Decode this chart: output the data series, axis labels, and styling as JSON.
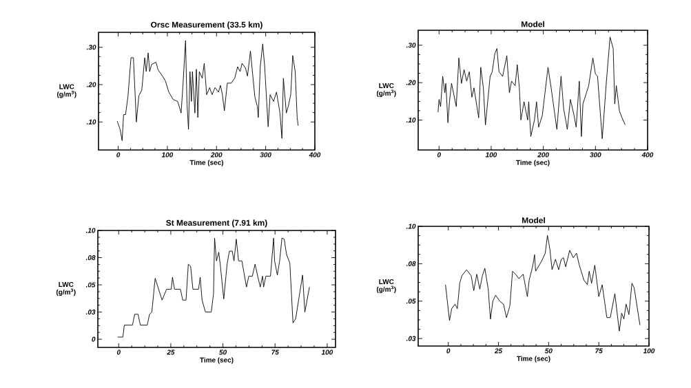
{
  "chart_data": [
    {
      "type": "line",
      "title": "Orsc Measurement (33.5 km)",
      "xlabel": "Time (sec)",
      "ylabel": "LWC (g/m$^{3}$)",
      "color": "#000000",
      "xlim": [
        -40,
        400
      ],
      "ylim": [
        0.025,
        0.34
      ],
      "xticks": [
        0,
        100,
        200,
        300,
        400
      ],
      "yticks": [
        {
          "value": 0.1,
          "label": ".10"
        },
        {
          "value": 0.2,
          "label": ".20"
        },
        {
          "value": 0.3,
          "label": ".30"
        }
      ],
      "x": [
        -2,
        4,
        8,
        11,
        15,
        20,
        26,
        31,
        37,
        42,
        48,
        54,
        57,
        61,
        64,
        68,
        77,
        81,
        90,
        96,
        103,
        112,
        121,
        128,
        132,
        137,
        140,
        143,
        146,
        149,
        151,
        156,
        159,
        162,
        165,
        171,
        175,
        180,
        186,
        191,
        197,
        204,
        208,
        212,
        216,
        222,
        230,
        237,
        243,
        248,
        252,
        259,
        263,
        269,
        272,
        278,
        283,
        285,
        289,
        294,
        298,
        302,
        305,
        309,
        316,
        322,
        329,
        333,
        336,
        342,
        346,
        351,
        355,
        360,
        364,
        366
      ],
      "values": [
        0.102,
        0.08,
        0.05,
        0.12,
        0.12,
        0.17,
        0.272,
        0.272,
        0.1,
        0.17,
        0.185,
        0.272,
        0.235,
        0.285,
        0.235,
        0.254,
        0.26,
        0.24,
        0.223,
        0.21,
        0.18,
        0.16,
        0.155,
        0.124,
        0.204,
        0.318,
        0.148,
        0.08,
        0.235,
        0.155,
        0.235,
        0.124,
        0.241,
        0.112,
        0.235,
        0.217,
        0.257,
        0.173,
        0.192,
        0.173,
        0.192,
        0.18,
        0.198,
        0.173,
        0.13,
        0.204,
        0.204,
        0.217,
        0.248,
        0.235,
        0.257,
        0.244,
        0.223,
        0.29,
        0.248,
        0.167,
        0.142,
        0.112,
        0.248,
        0.309,
        0.248,
        0.155,
        0.087,
        0.173,
        0.155,
        0.18,
        0.124,
        0.056,
        0.217,
        0.124,
        0.142,
        0.173,
        0.278,
        0.235,
        0.112,
        0.09
      ]
    },
    {
      "type": "line",
      "title": "Model",
      "xlabel": "Time (sec)",
      "ylabel": "LWC (g/m$^{3}$)",
      "color": "#000000",
      "xlim": [
        -40,
        400
      ],
      "ylim": [
        0.02,
        0.34
      ],
      "xticks": [
        0,
        100,
        200,
        300,
        400
      ],
      "yticks": [
        {
          "value": 0.1,
          "label": ".10"
        },
        {
          "value": 0.2,
          "label": ".20"
        },
        {
          "value": 0.3,
          "label": ".30"
        }
      ],
      "x": [
        -2,
        0,
        3,
        7,
        11,
        13,
        17,
        20,
        24,
        33,
        38,
        43,
        48,
        53,
        58,
        63,
        67,
        76,
        80,
        85,
        89,
        98,
        102,
        107,
        111,
        115,
        122,
        130,
        135,
        139,
        146,
        150,
        154,
        157,
        163,
        170,
        172,
        176,
        183,
        187,
        191,
        198,
        209,
        215,
        226,
        234,
        239,
        246,
        252,
        259,
        263,
        269,
        273,
        276,
        287,
        295,
        300,
        304,
        313,
        321,
        328,
        334,
        337,
        340,
        346,
        351,
        357
      ],
      "values": [
        0.121,
        0.155,
        0.136,
        0.217,
        0.173,
        0.198,
        0.093,
        0.149,
        0.198,
        0.136,
        0.266,
        0.198,
        0.235,
        0.204,
        0.229,
        0.161,
        0.186,
        0.106,
        0.241,
        0.186,
        0.087,
        0.217,
        0.229,
        0.278,
        0.291,
        0.229,
        0.217,
        0.272,
        0.173,
        0.204,
        0.192,
        0.248,
        0.186,
        0.1,
        0.149,
        0.1,
        0.149,
        0.056,
        0.1,
        0.149,
        0.081,
        0.112,
        0.241,
        0.186,
        0.075,
        0.217,
        0.13,
        0.075,
        0.155,
        0.112,
        0.081,
        0.204,
        0.056,
        0.143,
        0.192,
        0.266,
        0.223,
        0.217,
        0.05,
        0.204,
        0.322,
        0.291,
        0.143,
        0.192,
        0.124,
        0.106,
        0.087
      ]
    },
    {
      "type": "line",
      "title": "St Measurement (7.91 km)",
      "xlabel": "Time (sec)",
      "ylabel": "LWC (g/m$^{3}$)",
      "color": "#000000",
      "xlim": [
        -10,
        104
      ],
      "ylim": [
        -0.0075,
        0.1
      ],
      "xticks": [
        0,
        25,
        50,
        75,
        100
      ],
      "yticks": [
        0,
        {
          "value": 0.025,
          "label": ".03"
        },
        {
          "value": 0.05,
          "label": ".05"
        },
        {
          "value": 0.075,
          "label": ".08"
        },
        {
          "value": 0.1,
          "label": ".10"
        }
      ],
      "x": [
        -0.5,
        2,
        2.7,
        6.6,
        7.7,
        9.3,
        10.4,
        13.7,
        14.8,
        15.9,
        17.5,
        20.8,
        23,
        25.2,
        25.8,
        26.8,
        29.6,
        30.7,
        32.3,
        33.4,
        34.5,
        35.6,
        38.3,
        39.1,
        40,
        41.6,
        44.4,
        45.5,
        46,
        46.9,
        48,
        48.7,
        50.4,
        52,
        53.1,
        54.5,
        55.3,
        56.4,
        57.5,
        59.1,
        61.3,
        62.4,
        64.1,
        65.4,
        66.8,
        67.9,
        69,
        69.5,
        70.6,
        72.8,
        74.3,
        74.8,
        76.1,
        77.2,
        78.3,
        79.4,
        80.5,
        82.1,
        83.6,
        84.9,
        88.2,
        89.3,
        91.5
      ],
      "values": [
        0.002,
        0.002,
        0.013,
        0.013,
        0.023,
        0.023,
        0.013,
        0.013,
        0.023,
        0.025,
        0.056,
        0.036,
        0.046,
        0.046,
        0.057,
        0.046,
        0.046,
        0.036,
        0.036,
        0.069,
        0.067,
        0.046,
        0.046,
        0.057,
        0.036,
        0.025,
        0.025,
        0.042,
        0.093,
        0.072,
        0.08,
        0.069,
        0.037,
        0.069,
        0.081,
        0.081,
        0.072,
        0.092,
        0.072,
        0.072,
        0.048,
        0.058,
        0.058,
        0.069,
        0.057,
        0.048,
        0.058,
        0.048,
        0.058,
        0.058,
        0.093,
        0.072,
        0.059,
        0.072,
        0.093,
        0.092,
        0.078,
        0.07,
        0.015,
        0.019,
        0.059,
        0.025,
        0.048
      ]
    },
    {
      "type": "line",
      "title": "Model",
      "xlabel": "Time (sec)",
      "ylabel": "LWC (g/m$^{3}$)",
      "color": "#000000",
      "xlim": [
        -15,
        100
      ],
      "ylim": [
        0.02,
        0.1
      ],
      "xticks": [
        0,
        25,
        50,
        75,
        100
      ],
      "yticks": [
        {
          "value": 0.025,
          "label": ".03"
        },
        {
          "value": 0.05,
          "label": ".05"
        },
        {
          "value": 0.075,
          "label": ".08"
        },
        {
          "value": 0.1,
          "label": ".10"
        }
      ],
      "x": [
        -1.4,
        0.6,
        1.7,
        3.4,
        4.5,
        5.7,
        6.8,
        9.1,
        11.4,
        12.7,
        14.2,
        15.7,
        17,
        18.2,
        19.9,
        21,
        22.2,
        23.6,
        25.6,
        27.5,
        29,
        30.7,
        32,
        33.5,
        35.2,
        37.3,
        39.4,
        40.3,
        42,
        43,
        43.5,
        46.6,
        48.3,
        49.4,
        50.6,
        51.7,
        53.4,
        55,
        56.3,
        57.4,
        58.5,
        60.5,
        62.3,
        63.9,
        65.3,
        67.6,
        69.3,
        70.2,
        71.4,
        73,
        75,
        76.7,
        79,
        80.7,
        83,
        85.2,
        86.4,
        87.5,
        88.6,
        90,
        91.5,
        92.6,
        95.5
      ],
      "values": [
        0.061,
        0.037,
        0.045,
        0.048,
        0.045,
        0.062,
        0.067,
        0.071,
        0.067,
        0.057,
        0.068,
        0.058,
        0.067,
        0.072,
        0.058,
        0.038,
        0.05,
        0.054,
        0.05,
        0.048,
        0.039,
        0.047,
        0.07,
        0.068,
        0.065,
        0.068,
        0.053,
        0.064,
        0.073,
        0.081,
        0.07,
        0.077,
        0.082,
        0.094,
        0.085,
        0.071,
        0.078,
        0.071,
        0.078,
        0.079,
        0.073,
        0.084,
        0.079,
        0.082,
        0.074,
        0.064,
        0.061,
        0.07,
        0.062,
        0.074,
        0.053,
        0.061,
        0.039,
        0.039,
        0.055,
        0.03,
        0.042,
        0.038,
        0.048,
        0.041,
        0.062,
        0.059,
        0.034
      ]
    }
  ]
}
